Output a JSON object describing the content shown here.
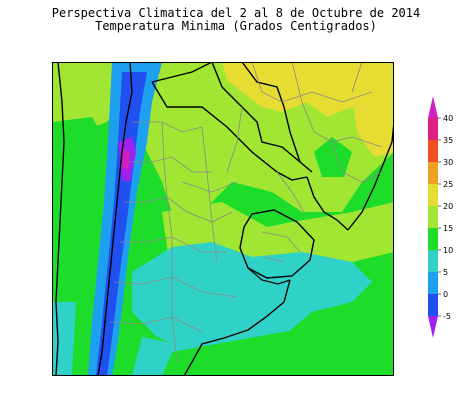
{
  "title_line1": "Perspectiva Climatica del 2 al 8 de Octubre de 2014",
  "title_line2": "Temperatura Minima (Grados Centigrados)",
  "legend": {
    "levels": [
      -5,
      0,
      5,
      10,
      15,
      20,
      25,
      30,
      35,
      40
    ],
    "tick_labels": [
      "-5",
      "0",
      "5",
      "10",
      "15",
      "20",
      "25",
      "30",
      "35",
      "40"
    ],
    "colors": [
      "#a020f0",
      "#2050f0",
      "#1ea0f0",
      "#30d2c8",
      "#1edc2a",
      "#a0e632",
      "#e6dc32",
      "#f0a020",
      "#f05020",
      "#e02080",
      "#d020c0"
    ]
  }
}
